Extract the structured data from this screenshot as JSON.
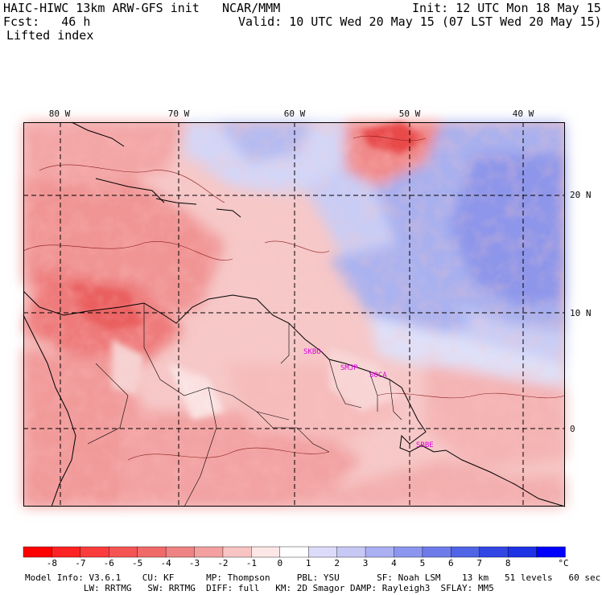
{
  "header": {
    "model_line": "HAIC-HIWC 13km ARW-GFS init",
    "org": "NCAR/MMM",
    "init": "Init: 12 UTC Mon 18 May 15",
    "fcst": "Fcst:   46 h",
    "valid": "Valid: 10 UTC Wed 20 May 15 (07 LST Wed 20 May 15)",
    "field": "Lifted index"
  },
  "map": {
    "lon_labels": [
      "80 W",
      "70 W",
      "60 W",
      "50 W",
      "40 W"
    ],
    "lat_labels": [
      "20 N",
      "10 N",
      "0"
    ],
    "stations": [
      "SKBO",
      "SMJP",
      "SOCA",
      "SBBE"
    ]
  },
  "colorbar": {
    "ticks": [
      "-8",
      "-7",
      "-6",
      "-5",
      "-4",
      "-3",
      "-2",
      "-1",
      "0",
      "1",
      "2",
      "3",
      "4",
      "5",
      "6",
      "7",
      "8"
    ],
    "unit": "°C",
    "colors": [
      "#ff0000",
      "#ff2222",
      "#fa3c3c",
      "#f55454",
      "#f06a6a",
      "#ef8282",
      "#f2a0a0",
      "#f8c4c4",
      "#fde6e6",
      "#ffffff",
      "#dcdcfa",
      "#c8c8f5",
      "#aab0f2",
      "#8c96ee",
      "#6e7cea",
      "#5064e6",
      "#3246e4",
      "#1e32e6",
      "#0000ff"
    ]
  },
  "footer": {
    "line1": "Model Info: V3.6.1    CU: KF      MP: Thompson     PBL: YSU       SF: Noah LSM    13 km   51 levels   60 sec",
    "line2": "           LW: RRTMG   SW: RRTMG  DIFF: full   KM: 2D Smagor DAMP: Rayleigh3  SFLAY: MM5"
  }
}
